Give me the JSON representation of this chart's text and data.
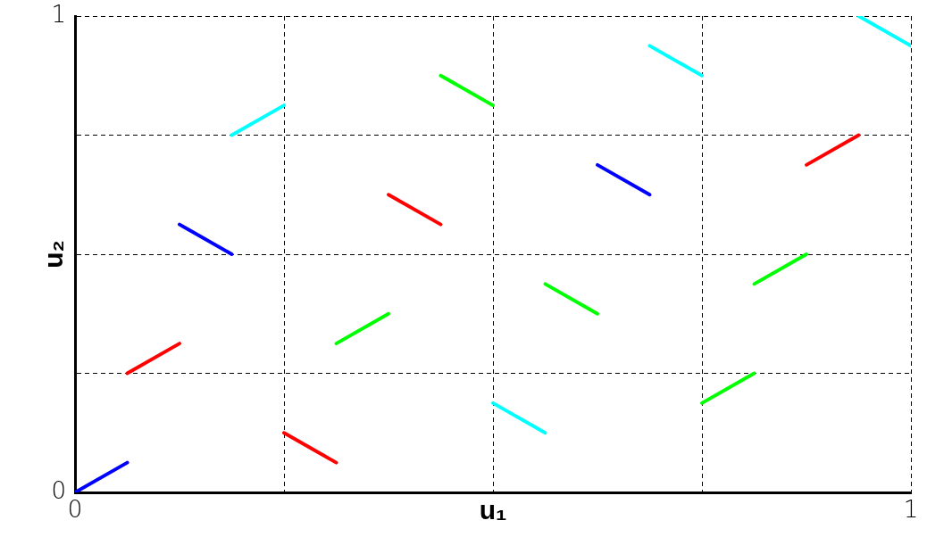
{
  "chart_data": {
    "type": "line",
    "xlabel": "u₁",
    "ylabel": "u₂",
    "xlim": [
      0,
      1
    ],
    "ylim": [
      0,
      1
    ],
    "xticks": [
      0,
      {
        "value": 0.25,
        "label": null
      },
      {
        "value": 0.5,
        "label": null
      },
      {
        "value": 0.75,
        "label": null
      },
      1
    ],
    "yticks": [
      0,
      {
        "value": 0.25,
        "label": null
      },
      {
        "value": 0.5,
        "label": null
      },
      {
        "value": 0.75,
        "label": null
      },
      1
    ],
    "grid": true,
    "legend": false,
    "marker": "none",
    "line_style": "solid",
    "series": [
      {
        "color": "#0000ff",
        "x": [
          0,
          0.0625
        ],
        "values": [
          0,
          0.0625
        ]
      },
      {
        "color": "#ff0000",
        "x": [
          0.0625,
          0.125
        ],
        "values": [
          0.25,
          0.3125
        ]
      },
      {
        "color": "#0000ff",
        "x": [
          0.125,
          0.1875
        ],
        "values": [
          0.5625,
          0.5
        ]
      },
      {
        "color": "#00ffff",
        "x": [
          0.1875,
          0.25
        ],
        "values": [
          0.75,
          0.8125
        ]
      },
      {
        "color": "#ff0000",
        "x": [
          0.25,
          0.3125
        ],
        "values": [
          0.125,
          0.0625
        ]
      },
      {
        "color": "#00ff00",
        "x": [
          0.3125,
          0.375
        ],
        "values": [
          0.3125,
          0.375
        ]
      },
      {
        "color": "#ff0000",
        "x": [
          0.375,
          0.4375
        ],
        "values": [
          0.625,
          0.5625
        ]
      },
      {
        "color": "#00ff00",
        "x": [
          0.4375,
          0.5
        ],
        "values": [
          0.875,
          0.8125
        ]
      },
      {
        "color": "#00ffff",
        "x": [
          0.5,
          0.5625
        ],
        "values": [
          0.1875,
          0.125
        ]
      },
      {
        "color": "#00ff00",
        "x": [
          0.5625,
          0.625
        ],
        "values": [
          0.4375,
          0.375
        ]
      },
      {
        "color": "#0000ff",
        "x": [
          0.625,
          0.6875
        ],
        "values": [
          0.6875,
          0.625
        ]
      },
      {
        "color": "#00ffff",
        "x": [
          0.6875,
          0.75
        ],
        "values": [
          0.9375,
          0.875
        ]
      },
      {
        "color": "#00ff00",
        "x": [
          0.75,
          0.8125
        ],
        "values": [
          0.1875,
          0.25
        ]
      },
      {
        "color": "#00ff00",
        "x": [
          0.8125,
          0.875
        ],
        "values": [
          0.4375,
          0.5
        ]
      },
      {
        "color": "#ff0000",
        "x": [
          0.875,
          0.9375
        ],
        "values": [
          0.6875,
          0.75
        ]
      },
      {
        "color": "#00ffff",
        "x": [
          0.9375,
          1
        ],
        "values": [
          1,
          0.9375
        ]
      }
    ]
  }
}
